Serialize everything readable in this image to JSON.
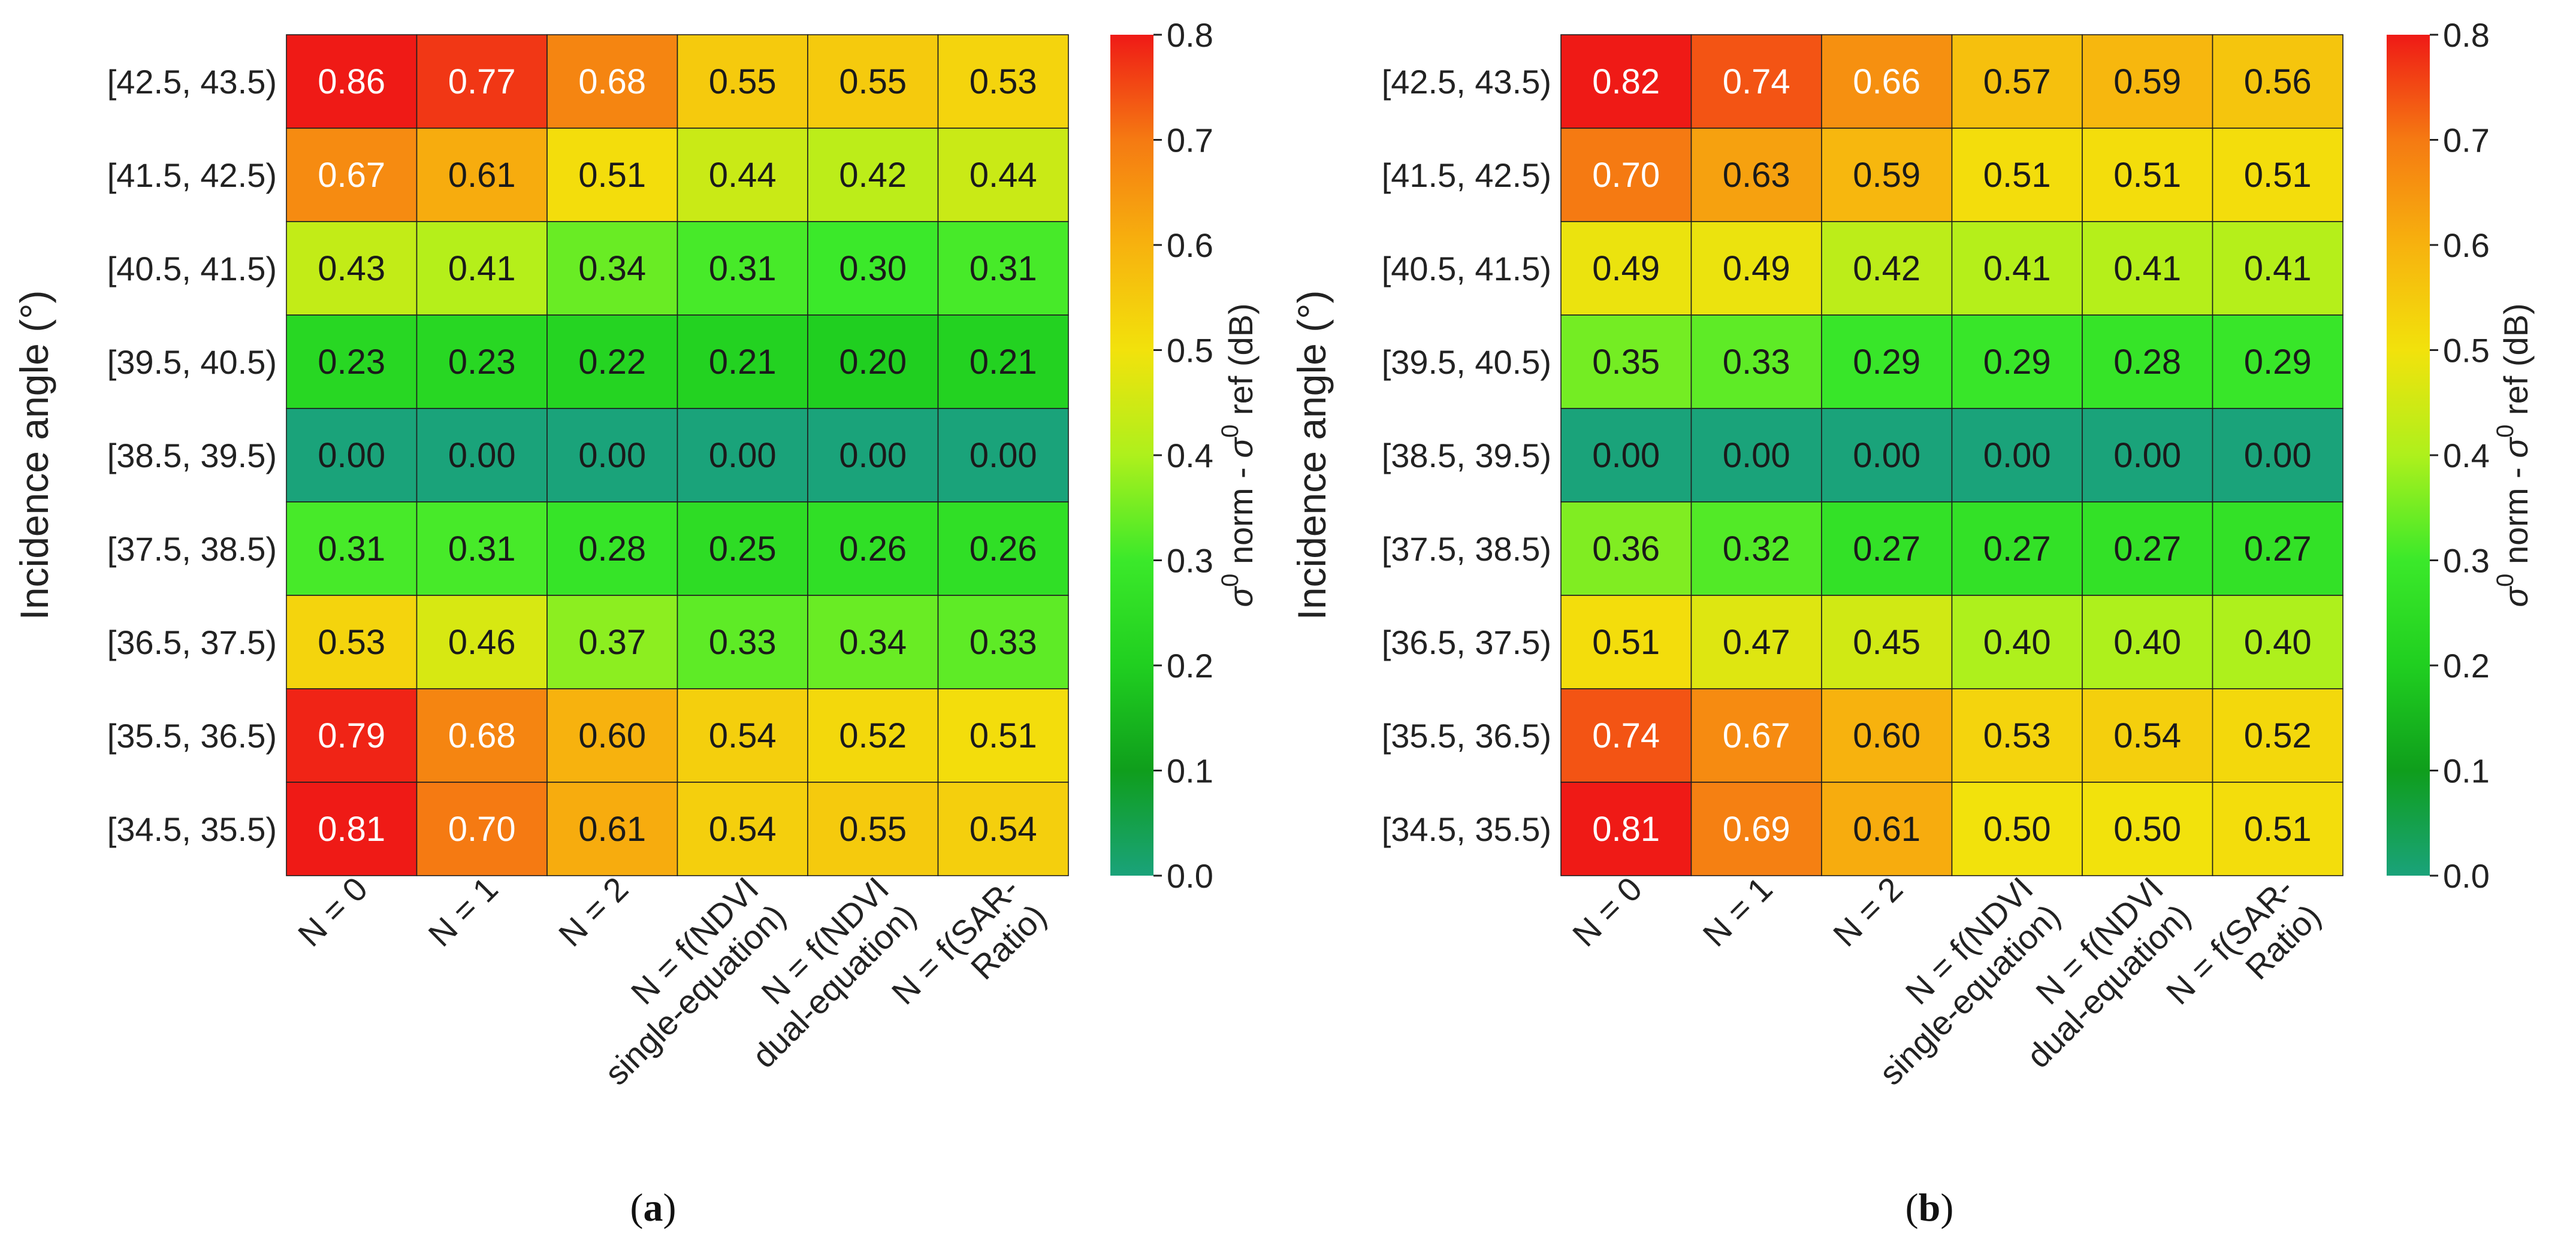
{
  "chart_data": [
    {
      "type": "heatmap",
      "panel_label": "a",
      "ylabel": "Incidence angle (°)",
      "colorbar_label": "σ0 norm - σ0 ref (dB)",
      "colorbar_label_parts": {
        "sigma": "σ",
        "sup": "0",
        "mid": " norm - ",
        "sigma2": "σ",
        "sup2": "0",
        "end": " ref (dB)"
      },
      "vmin": 0.0,
      "vmax": 0.8,
      "colorbar_ticks": [
        "0.0",
        "0.1",
        "0.2",
        "0.3",
        "0.4",
        "0.5",
        "0.6",
        "0.7",
        "0.8"
      ],
      "rows": [
        "[42.5, 43.5)",
        "[41.5, 42.5)",
        "[40.5, 41.5)",
        "[39.5, 40.5)",
        "[38.5, 39.5)",
        "[37.5, 38.5)",
        "[36.5, 37.5)",
        "[35.5, 36.5)",
        "[34.5, 35.5)"
      ],
      "columns": [
        {
          "lines": [
            "N = 0"
          ]
        },
        {
          "lines": [
            "N = 1"
          ]
        },
        {
          "lines": [
            "N = 2"
          ]
        },
        {
          "lines": [
            "N = f(NDVI",
            "single-equation)"
          ]
        },
        {
          "lines": [
            "N = f(NDVI",
            "dual-equation)"
          ]
        },
        {
          "lines": [
            "N = f(SAR-",
            "Ratio)"
          ]
        }
      ],
      "values": [
        [
          "0.86",
          "0.77",
          "0.68",
          "0.55",
          "0.55",
          "0.53"
        ],
        [
          "0.67",
          "0.61",
          "0.51",
          "0.44",
          "0.42",
          "0.44"
        ],
        [
          "0.43",
          "0.41",
          "0.34",
          "0.31",
          "0.30",
          "0.31"
        ],
        [
          "0.23",
          "0.23",
          "0.22",
          "0.21",
          "0.20",
          "0.21"
        ],
        [
          "0.00",
          "0.00",
          "0.00",
          "0.00",
          "0.00",
          "0.00"
        ],
        [
          "0.31",
          "0.31",
          "0.28",
          "0.25",
          "0.26",
          "0.26"
        ],
        [
          "0.53",
          "0.46",
          "0.37",
          "0.33",
          "0.34",
          "0.33"
        ],
        [
          "0.79",
          "0.68",
          "0.60",
          "0.54",
          "0.52",
          "0.51"
        ],
        [
          "0.81",
          "0.70",
          "0.61",
          "0.54",
          "0.55",
          "0.54"
        ]
      ]
    },
    {
      "type": "heatmap",
      "panel_label": "b",
      "ylabel": "Incidence angle (°)",
      "colorbar_label": "σ0 norm - σ0 ref (dB)",
      "colorbar_label_parts": {
        "sigma": "σ",
        "sup": "0",
        "mid": " norm - ",
        "sigma2": "σ",
        "sup2": "0",
        "end": " ref (dB)"
      },
      "vmin": 0.0,
      "vmax": 0.8,
      "colorbar_ticks": [
        "0.0",
        "0.1",
        "0.2",
        "0.3",
        "0.4",
        "0.5",
        "0.6",
        "0.7",
        "0.8"
      ],
      "rows": [
        "[42.5, 43.5)",
        "[41.5, 42.5)",
        "[40.5, 41.5)",
        "[39.5, 40.5)",
        "[38.5, 39.5)",
        "[37.5, 38.5)",
        "[36.5, 37.5)",
        "[35.5, 36.5)",
        "[34.5, 35.5)"
      ],
      "columns": [
        {
          "lines": [
            "N = 0"
          ]
        },
        {
          "lines": [
            "N = 1"
          ]
        },
        {
          "lines": [
            "N = 2"
          ]
        },
        {
          "lines": [
            "N = f(NDVI",
            "single-equation)"
          ]
        },
        {
          "lines": [
            "N = f(NDVI",
            "dual-equation)"
          ]
        },
        {
          "lines": [
            "N = f(SAR-",
            "Ratio)"
          ]
        }
      ],
      "values": [
        [
          "0.82",
          "0.74",
          "0.66",
          "0.57",
          "0.59",
          "0.56"
        ],
        [
          "0.70",
          "0.63",
          "0.59",
          "0.51",
          "0.51",
          "0.51"
        ],
        [
          "0.49",
          "0.49",
          "0.42",
          "0.41",
          "0.41",
          "0.41"
        ],
        [
          "0.35",
          "0.33",
          "0.29",
          "0.29",
          "0.28",
          "0.29"
        ],
        [
          "0.00",
          "0.00",
          "0.00",
          "0.00",
          "0.00",
          "0.00"
        ],
        [
          "0.36",
          "0.32",
          "0.27",
          "0.27",
          "0.27",
          "0.27"
        ],
        [
          "0.51",
          "0.47",
          "0.45",
          "0.40",
          "0.40",
          "0.40"
        ],
        [
          "0.74",
          "0.67",
          "0.60",
          "0.53",
          "0.54",
          "0.52"
        ],
        [
          "0.81",
          "0.69",
          "0.61",
          "0.50",
          "0.50",
          "0.51"
        ]
      ]
    }
  ],
  "colors": {
    "scale_stops": [
      {
        "v": 0.0,
        "color": "#1aa37a"
      },
      {
        "v": 0.1,
        "color": "#0f9e1c"
      },
      {
        "v": 0.2,
        "color": "#20cf20"
      },
      {
        "v": 0.3,
        "color": "#3be92a"
      },
      {
        "v": 0.4,
        "color": "#aef01c"
      },
      {
        "v": 0.5,
        "color": "#f2e20c"
      },
      {
        "v": 0.6,
        "color": "#f7b20e"
      },
      {
        "v": 0.7,
        "color": "#f57a12"
      },
      {
        "v": 0.8,
        "color": "#ef1a16"
      }
    ],
    "light_text_threshold": 0.65,
    "text_dark": "#1a1a1a",
    "text_light": "#ffffff"
  }
}
